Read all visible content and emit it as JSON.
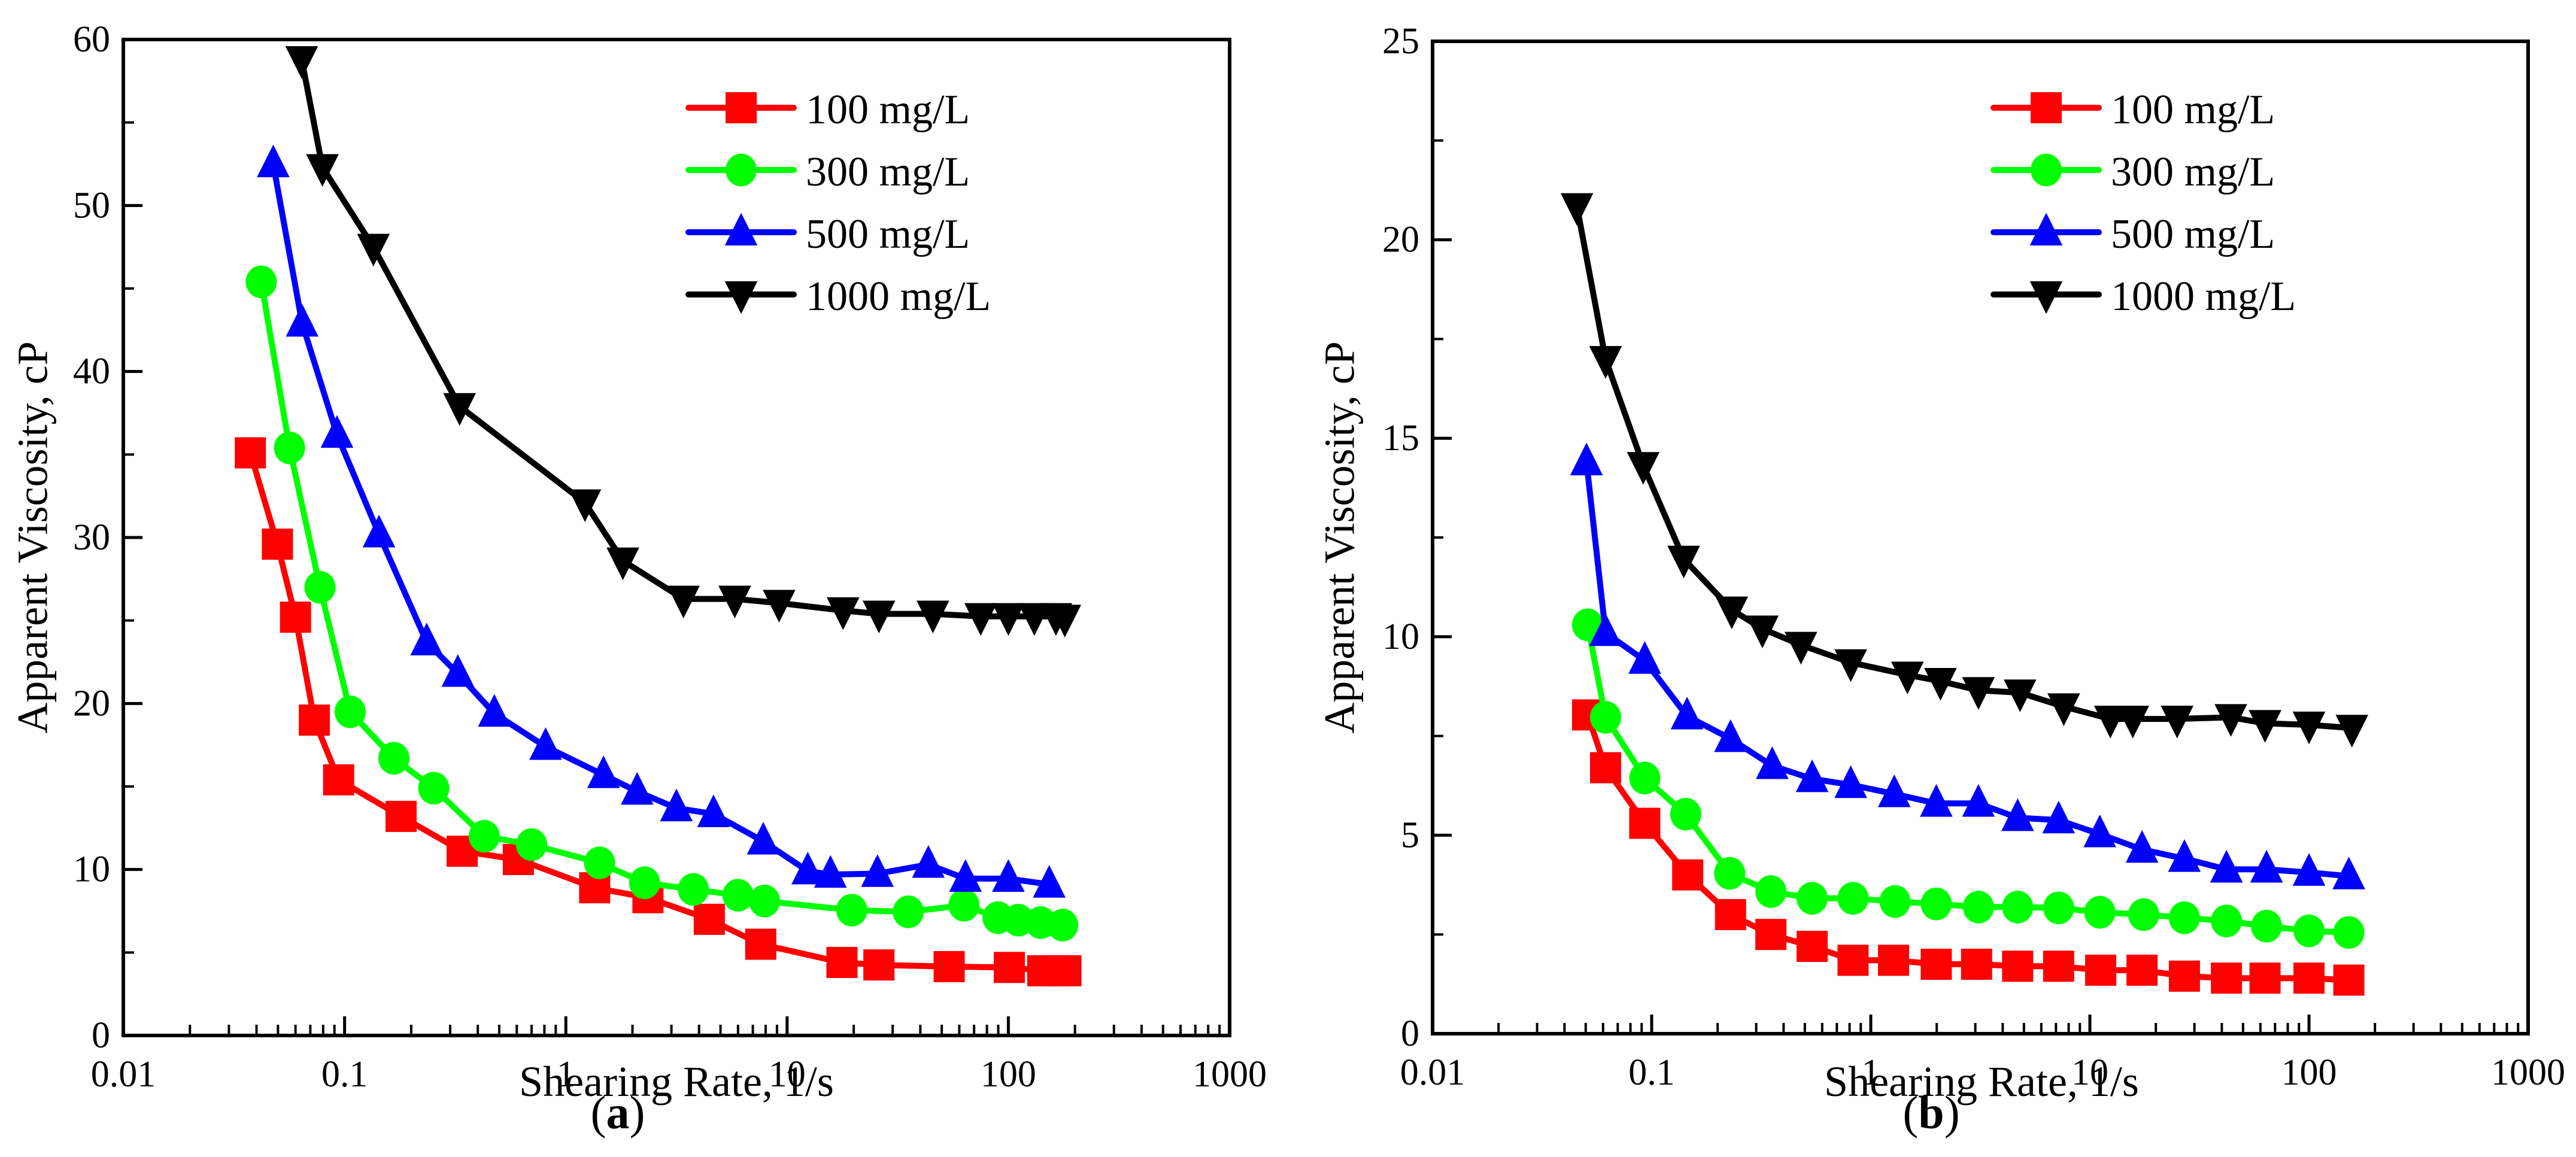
{
  "figure": {
    "panels": [
      {
        "caption_open": "(",
        "caption_letter": "a",
        "caption_close": ")"
      },
      {
        "caption_open": "(",
        "caption_letter": "b",
        "caption_close": ")"
      }
    ]
  },
  "series_style": [
    {
      "name": "100 mg/L",
      "color": "#ff0000",
      "marker": "square"
    },
    {
      "name": "300 mg/L",
      "color": "#00ff00",
      "marker": "circle"
    },
    {
      "name": "500 mg/L",
      "color": "#0000ff",
      "marker": "triangle-up"
    },
    {
      "name": "1000 mg/L",
      "color": "#000000",
      "marker": "triangle-down"
    }
  ],
  "chart_data": [
    {
      "type": "line",
      "panel": "a",
      "title": "",
      "xlabel": "Shearing Rate, 1/s",
      "ylabel": "Apparent Viscosity, cP",
      "xscale": "log",
      "xlim": [
        0.01,
        1000
      ],
      "ylim": [
        0,
        60
      ],
      "xticks": [
        0.01,
        0.1,
        1,
        10,
        100,
        1000
      ],
      "xtick_labels": [
        "0.01",
        "0.1",
        "1",
        "10",
        "100",
        "1000"
      ],
      "yticks": [
        0,
        10,
        20,
        30,
        40,
        50,
        60
      ],
      "ytick_labels": [
        "0",
        "10",
        "20",
        "30",
        "40",
        "50",
        "60"
      ],
      "grid": false,
      "legend": {
        "position": "top-right",
        "entries": [
          "100 mg/L",
          "300 mg/L",
          "500 mg/L",
          "1000 mg/L"
        ]
      },
      "series": [
        {
          "name": "100 mg/L",
          "x": [
            0.0375,
            0.0497,
            0.06,
            0.073,
            0.094,
            0.18,
            0.34,
            0.61,
            1.35,
            2.35,
            4.45,
            7.6,
            17.7,
            26,
            54,
            101,
            143,
            182
          ],
          "y": [
            35.1,
            29.6,
            25.2,
            19.0,
            15.4,
            13.2,
            11.1,
            10.6,
            8.9,
            8.3,
            7.0,
            5.5,
            4.4,
            4.25,
            4.15,
            4.1,
            3.9,
            3.9
          ]
        },
        {
          "name": "300 mg/L",
          "x": [
            0.042,
            0.0564,
            0.0774,
            0.106,
            0.167,
            0.253,
            0.428,
            0.7,
            1.42,
            2.27,
            3.77,
            6.0,
            7.9,
            19.6,
            35.3,
            63,
            89.8,
            111,
            140,
            176
          ],
          "y": [
            45.4,
            35.4,
            27.0,
            19.5,
            16.7,
            14.9,
            12.0,
            11.5,
            10.4,
            9.2,
            8.8,
            8.45,
            8.1,
            7.55,
            7.45,
            7.85,
            7.1,
            6.95,
            6.8,
            6.65
          ]
        },
        {
          "name": "500 mg/L",
          "x": [
            0.0476,
            0.0643,
            0.0924,
            0.143,
            0.235,
            0.325,
            0.475,
            0.81,
            1.48,
            2.1,
            3.16,
            4.65,
            7.8,
            12.4,
            15.7,
            25.6,
            43.5,
            64,
            100,
            153
          ],
          "y": [
            52.5,
            42.9,
            36.2,
            30.2,
            23.7,
            21.8,
            19.4,
            17.4,
            15.7,
            14.7,
            13.7,
            13.35,
            11.7,
            9.9,
            9.7,
            9.75,
            10.3,
            9.45,
            9.45,
            9.1
          ]
        },
        {
          "name": "1000 mg/L",
          "x": [
            0.064,
            0.0794,
            0.135,
            0.331,
            1.22,
            1.81,
            3.4,
            5.8,
            9.2,
            17.9,
            26,
            45.6,
            75,
            100,
            131,
            164,
            180
          ],
          "y": [
            58.8,
            52.3,
            47.5,
            37.9,
            32.1,
            28.6,
            26.3,
            26.3,
            26.05,
            25.6,
            25.4,
            25.4,
            25.25,
            25.25,
            25.25,
            25.25,
            25.15
          ]
        }
      ]
    },
    {
      "type": "line",
      "panel": "b",
      "title": "",
      "xlabel": "Shearing Rate, 1/s",
      "ylabel": "Apparent Viscosity, cP",
      "xscale": "log",
      "xlim": [
        0.01,
        1000
      ],
      "ylim": [
        0,
        25
      ],
      "xticks": [
        0.01,
        0.1,
        1,
        10,
        100,
        1000
      ],
      "xtick_labels": [
        "0.01",
        "0.1",
        "1",
        "10",
        "100",
        "1000"
      ],
      "yticks": [
        0,
        5,
        10,
        15,
        20,
        25
      ],
      "ytick_labels": [
        "0",
        "5",
        "10",
        "15",
        "20",
        "25"
      ],
      "grid": false,
      "legend": {
        "position": "top-right",
        "entries": [
          "100 mg/L",
          "300 mg/L",
          "500 mg/L",
          "1000 mg/L"
        ]
      },
      "series": [
        {
          "name": "100 mg/L",
          "x": [
            0.051,
            0.0616,
            0.093,
            0.146,
            0.229,
            0.35,
            0.54,
            0.83,
            1.27,
            1.99,
            3.04,
            4.68,
            7.2,
            11.2,
            17.3,
            27,
            42,
            63,
            100,
            152
          ],
          "y": [
            8.03,
            6.7,
            5.3,
            4.0,
            3.0,
            2.5,
            2.2,
            1.85,
            1.85,
            1.75,
            1.75,
            1.7,
            1.7,
            1.6,
            1.6,
            1.45,
            1.4,
            1.4,
            1.4,
            1.35
          ]
        },
        {
          "name": "300 mg/L",
          "x": [
            0.051,
            0.0616,
            0.093,
            0.143,
            0.227,
            0.35,
            0.54,
            0.83,
            1.29,
            1.99,
            3.1,
            4.68,
            7.2,
            11.1,
            17.6,
            27,
            42,
            64,
            100,
            152
          ],
          "y": [
            10.3,
            7.97,
            6.44,
            5.53,
            4.04,
            3.58,
            3.41,
            3.41,
            3.33,
            3.27,
            3.19,
            3.19,
            3.17,
            3.06,
            3.0,
            2.92,
            2.84,
            2.71,
            2.59,
            2.55
          ]
        },
        {
          "name": "500 mg/L",
          "x": [
            0.0504,
            0.0616,
            0.093,
            0.145,
            0.229,
            0.355,
            0.54,
            0.81,
            1.28,
            1.99,
            3.1,
            4.68,
            7.2,
            11.1,
            17.3,
            27,
            42,
            64,
            100,
            152
          ],
          "y": [
            14.4,
            10.1,
            9.4,
            8.0,
            7.43,
            6.75,
            6.42,
            6.27,
            6.04,
            5.8,
            5.8,
            5.44,
            5.38,
            5.03,
            4.64,
            4.41,
            4.14,
            4.14,
            4.06,
            3.97
          ]
        },
        {
          "name": "1000 mg/L",
          "x": [
            0.0456,
            0.0616,
            0.0915,
            0.14,
            0.232,
            0.32,
            0.48,
            0.81,
            1.47,
            2.08,
            3.1,
            4.8,
            7.6,
            12.4,
            15.7,
            25,
            44,
            63,
            100,
            157
          ],
          "y": [
            20.84,
            16.99,
            14.32,
            11.96,
            10.68,
            10.2,
            9.79,
            9.35,
            9.04,
            8.88,
            8.65,
            8.59,
            8.24,
            7.93,
            7.93,
            7.93,
            7.97,
            7.82,
            7.78,
            7.7
          ]
        }
      ]
    }
  ]
}
